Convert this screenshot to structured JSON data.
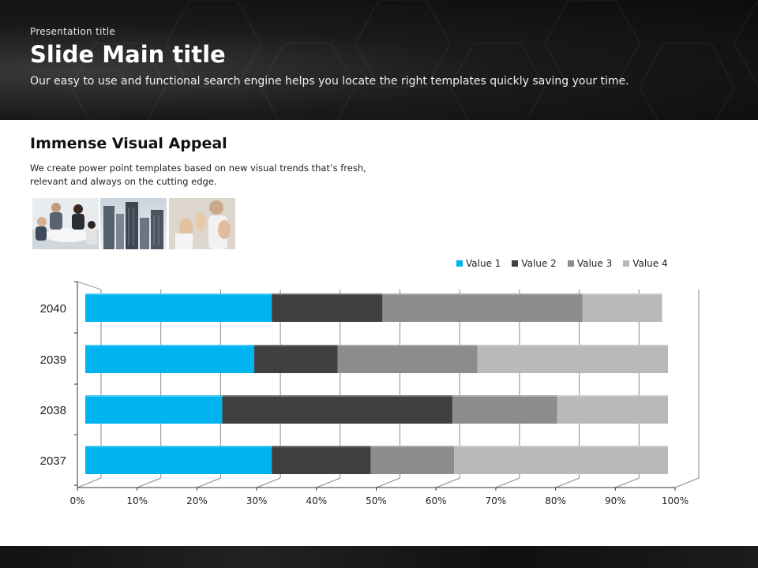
{
  "header": {
    "presentation_title": "Presentation  title",
    "main_title": "Slide Main title",
    "subtitle": "Our easy to use and functional search engine helps you locate the right templates quickly saving your time."
  },
  "section": {
    "title": "Immense Visual Appeal",
    "body": "We create power point templates based on new visual trends that’s fresh, relevant and always on the cutting edge."
  },
  "photos": [
    {
      "name": "team-meeting-photo"
    },
    {
      "name": "skyscrapers-photo"
    },
    {
      "name": "applause-photo"
    }
  ],
  "chart_data": {
    "type": "bar",
    "orientation": "horizontal",
    "stacked": "percent",
    "categories": [
      "2040",
      "2039",
      "2038",
      "2037"
    ],
    "series": [
      {
        "name": "Value  1",
        "color": "#00b4f0",
        "values": [
          32,
          29,
          23.5,
          32
        ]
      },
      {
        "name": "Value  2",
        "color": "#404040",
        "values": [
          19,
          14.3,
          39.5,
          17
        ]
      },
      {
        "name": "Value  3",
        "color": "#8c8c8c",
        "values": [
          34.3,
          24,
          18,
          14.3
        ]
      },
      {
        "name": "Value  4",
        "color": "#b9b9b9",
        "values": [
          13.7,
          32.7,
          19,
          36.7
        ]
      }
    ],
    "xticks": [
      "0%",
      "10%",
      "20%",
      "30%",
      "40%",
      "50%",
      "60%",
      "70%",
      "80%",
      "90%",
      "100%"
    ],
    "xlim": [
      0,
      100
    ],
    "grid": true,
    "legend_position": "top-right"
  }
}
